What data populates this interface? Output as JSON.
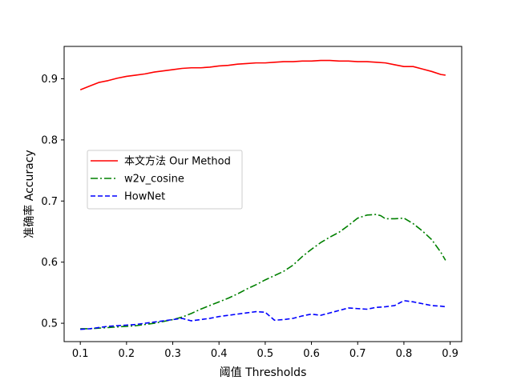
{
  "chart_data": {
    "type": "line",
    "xlabel": "阈值 Thresholds",
    "ylabel": "准确率 Accuracy",
    "xlim": [
      0.065,
      0.925
    ],
    "ylim": [
      0.47,
      0.953
    ],
    "xticks": [
      0.1,
      0.2,
      0.3,
      0.4,
      0.5,
      0.6,
      0.7,
      0.8,
      0.9
    ],
    "yticks": [
      0.5,
      0.6,
      0.7,
      0.8,
      0.9
    ],
    "xtick_labels": [
      "0.1",
      "0.2",
      "0.3",
      "0.4",
      "0.5",
      "0.6",
      "0.7",
      "0.8",
      "0.9"
    ],
    "ytick_labels": [
      "0.5",
      "0.6",
      "0.7",
      "0.8",
      "0.9"
    ],
    "grid": false,
    "legend_position": "center-left",
    "series": [
      {
        "name": "本文方法 Our Method",
        "color": "#ff0000",
        "linestyle": "solid",
        "x": [
          0.1,
          0.12,
          0.14,
          0.16,
          0.18,
          0.2,
          0.22,
          0.24,
          0.26,
          0.28,
          0.3,
          0.32,
          0.34,
          0.36,
          0.38,
          0.4,
          0.42,
          0.44,
          0.46,
          0.48,
          0.5,
          0.52,
          0.54,
          0.56,
          0.58,
          0.6,
          0.62,
          0.64,
          0.66,
          0.68,
          0.7,
          0.72,
          0.74,
          0.76,
          0.78,
          0.8,
          0.82,
          0.84,
          0.86,
          0.88,
          0.89
        ],
        "y": [
          0.882,
          0.888,
          0.894,
          0.897,
          0.901,
          0.904,
          0.906,
          0.908,
          0.911,
          0.913,
          0.915,
          0.917,
          0.918,
          0.918,
          0.919,
          0.921,
          0.922,
          0.924,
          0.925,
          0.926,
          0.926,
          0.927,
          0.928,
          0.928,
          0.929,
          0.929,
          0.93,
          0.93,
          0.929,
          0.929,
          0.928,
          0.928,
          0.927,
          0.926,
          0.923,
          0.92,
          0.92,
          0.916,
          0.912,
          0.907,
          0.906
        ]
      },
      {
        "name": "w2v_cosine",
        "color": "#008000",
        "linestyle": "dashdot",
        "x": [
          0.1,
          0.12,
          0.14,
          0.16,
          0.18,
          0.2,
          0.22,
          0.24,
          0.26,
          0.28,
          0.3,
          0.32,
          0.34,
          0.36,
          0.38,
          0.4,
          0.42,
          0.44,
          0.46,
          0.48,
          0.5,
          0.52,
          0.54,
          0.56,
          0.58,
          0.6,
          0.62,
          0.64,
          0.66,
          0.68,
          0.7,
          0.72,
          0.74,
          0.75,
          0.76,
          0.78,
          0.8,
          0.82,
          0.84,
          0.86,
          0.88,
          0.89
        ],
        "y": [
          0.491,
          0.491,
          0.492,
          0.493,
          0.494,
          0.495,
          0.496,
          0.498,
          0.5,
          0.503,
          0.506,
          0.51,
          0.516,
          0.523,
          0.529,
          0.535,
          0.541,
          0.548,
          0.556,
          0.563,
          0.571,
          0.578,
          0.585,
          0.595,
          0.609,
          0.621,
          0.632,
          0.641,
          0.649,
          0.66,
          0.672,
          0.677,
          0.678,
          0.676,
          0.671,
          0.671,
          0.672,
          0.663,
          0.651,
          0.637,
          0.616,
          0.603
        ]
      },
      {
        "name": "HowNet",
        "color": "#0000ff",
        "linestyle": "dashed",
        "x": [
          0.1,
          0.12,
          0.14,
          0.16,
          0.18,
          0.2,
          0.22,
          0.24,
          0.26,
          0.28,
          0.3,
          0.32,
          0.34,
          0.36,
          0.38,
          0.4,
          0.42,
          0.44,
          0.46,
          0.48,
          0.5,
          0.52,
          0.54,
          0.56,
          0.58,
          0.6,
          0.62,
          0.64,
          0.66,
          0.68,
          0.7,
          0.72,
          0.74,
          0.76,
          0.78,
          0.8,
          0.82,
          0.84,
          0.86,
          0.88,
          0.89
        ],
        "y": [
          0.49,
          0.491,
          0.493,
          0.495,
          0.496,
          0.497,
          0.498,
          0.5,
          0.502,
          0.504,
          0.506,
          0.508,
          0.504,
          0.506,
          0.508,
          0.511,
          0.513,
          0.515,
          0.517,
          0.519,
          0.518,
          0.505,
          0.506,
          0.508,
          0.512,
          0.515,
          0.513,
          0.517,
          0.521,
          0.525,
          0.524,
          0.523,
          0.526,
          0.527,
          0.529,
          0.537,
          0.535,
          0.532,
          0.529,
          0.528,
          0.527
        ]
      }
    ]
  }
}
